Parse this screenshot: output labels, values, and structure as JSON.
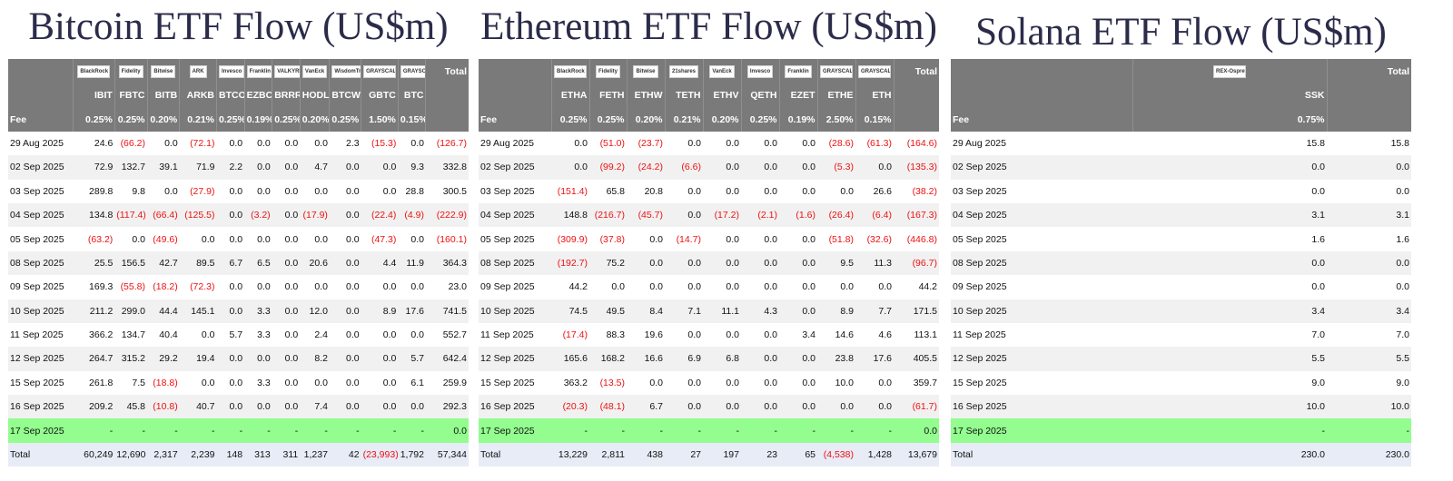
{
  "colors": {
    "header_bg": "#7a7a7a",
    "negative": "#ee1111",
    "highlight_row": "#93fd8f",
    "total_row": "#e7ecf7",
    "title": "#2b2b4a"
  },
  "panels": [
    {
      "id": "bitcoin",
      "title": "Bitcoin ETF Flow (US$m)",
      "issuer_logos": [
        "",
        "BlackRock",
        "Fidelity",
        "Bitwise",
        "ARK",
        "Invesco",
        "Franklin",
        "VALKYRIE",
        "VanEck",
        "WisdomTree",
        "GRAYSCALE",
        "GRAYSCALE",
        "Total"
      ],
      "tickers": [
        "",
        "IBIT",
        "FBTC",
        "BITB",
        "ARKB",
        "BTCO",
        "EZBC",
        "BRRR",
        "HODL",
        "BTCW",
        "GBTC",
        "BTC",
        ""
      ],
      "fees": [
        "Fee",
        "0.25%",
        "0.25%",
        "0.20%",
        "0.21%",
        "0.25%",
        "0.19%",
        "0.25%",
        "0.20%",
        "0.25%",
        "1.50%",
        "0.15%",
        ""
      ],
      "rows": [
        [
          "29 Aug 2025",
          "24.6",
          "(66.2)",
          "0.0",
          "(72.1)",
          "0.0",
          "0.0",
          "0.0",
          "0.0",
          "2.3",
          "(15.3)",
          "0.0",
          "(126.7)"
        ],
        [
          "02 Sep 2025",
          "72.9",
          "132.7",
          "39.1",
          "71.9",
          "2.2",
          "0.0",
          "0.0",
          "4.7",
          "0.0",
          "0.0",
          "9.3",
          "332.8"
        ],
        [
          "03 Sep 2025",
          "289.8",
          "9.8",
          "0.0",
          "(27.9)",
          "0.0",
          "0.0",
          "0.0",
          "0.0",
          "0.0",
          "0.0",
          "28.8",
          "300.5"
        ],
        [
          "04 Sep 2025",
          "134.8",
          "(117.4)",
          "(66.4)",
          "(125.5)",
          "0.0",
          "(3.2)",
          "0.0",
          "(17.9)",
          "0.0",
          "(22.4)",
          "(4.9)",
          "(222.9)"
        ],
        [
          "05 Sep 2025",
          "(63.2)",
          "0.0",
          "(49.6)",
          "0.0",
          "0.0",
          "0.0",
          "0.0",
          "0.0",
          "0.0",
          "(47.3)",
          "0.0",
          "(160.1)"
        ],
        [
          "08 Sep 2025",
          "25.5",
          "156.5",
          "42.7",
          "89.5",
          "6.7",
          "6.5",
          "0.0",
          "20.6",
          "0.0",
          "4.4",
          "11.9",
          "364.3"
        ],
        [
          "09 Sep 2025",
          "169.3",
          "(55.8)",
          "(18.2)",
          "(72.3)",
          "0.0",
          "0.0",
          "0.0",
          "0.0",
          "0.0",
          "0.0",
          "0.0",
          "23.0"
        ],
        [
          "10 Sep 2025",
          "211.2",
          "299.0",
          "44.4",
          "145.1",
          "0.0",
          "3.3",
          "0.0",
          "12.0",
          "0.0",
          "8.9",
          "17.6",
          "741.5"
        ],
        [
          "11 Sep 2025",
          "366.2",
          "134.7",
          "40.4",
          "0.0",
          "5.7",
          "3.3",
          "0.0",
          "2.4",
          "0.0",
          "0.0",
          "0.0",
          "552.7"
        ],
        [
          "12 Sep 2025",
          "264.7",
          "315.2",
          "29.2",
          "19.4",
          "0.0",
          "0.0",
          "0.0",
          "8.2",
          "0.0",
          "0.0",
          "5.7",
          "642.4"
        ],
        [
          "15 Sep 2025",
          "261.8",
          "7.5",
          "(18.8)",
          "0.0",
          "0.0",
          "3.3",
          "0.0",
          "0.0",
          "0.0",
          "0.0",
          "6.1",
          "259.9"
        ],
        [
          "16 Sep 2025",
          "209.2",
          "45.8",
          "(10.8)",
          "40.7",
          "0.0",
          "0.0",
          "0.0",
          "7.4",
          "0.0",
          "0.0",
          "0.0",
          "292.3"
        ],
        [
          "17 Sep 2025",
          "-",
          "-",
          "-",
          "-",
          "-",
          "-",
          "-",
          "-",
          "-",
          "-",
          "-",
          "0.0"
        ]
      ],
      "total_row": [
        "Total",
        "60,249",
        "12,690",
        "2,317",
        "2,239",
        "148",
        "313",
        "311",
        "1,237",
        "42",
        "(23,993)",
        "1,792",
        "57,344"
      ]
    },
    {
      "id": "ethereum",
      "title": "Ethereum ETF Flow (US$m)",
      "issuer_logos": [
        "",
        "BlackRock",
        "Fidelity",
        "Bitwise",
        "21shares",
        "VanEck",
        "Invesco",
        "Franklin",
        "GRAYSCALE",
        "GRAYSCALE",
        "Total"
      ],
      "tickers": [
        "",
        "ETHA",
        "FETH",
        "ETHW",
        "TETH",
        "ETHV",
        "QETH",
        "EZET",
        "ETHE",
        "ETH",
        ""
      ],
      "fees": [
        "Fee",
        "0.25%",
        "0.25%",
        "0.20%",
        "0.21%",
        "0.20%",
        "0.25%",
        "0.19%",
        "2.50%",
        "0.15%",
        ""
      ],
      "rows": [
        [
          "29 Aug 2025",
          "0.0",
          "(51.0)",
          "(23.7)",
          "0.0",
          "0.0",
          "0.0",
          "0.0",
          "(28.6)",
          "(61.3)",
          "(164.6)"
        ],
        [
          "02 Sep 2025",
          "0.0",
          "(99.2)",
          "(24.2)",
          "(6.6)",
          "0.0",
          "0.0",
          "0.0",
          "(5.3)",
          "0.0",
          "(135.3)"
        ],
        [
          "03 Sep 2025",
          "(151.4)",
          "65.8",
          "20.8",
          "0.0",
          "0.0",
          "0.0",
          "0.0",
          "0.0",
          "26.6",
          "(38.2)"
        ],
        [
          "04 Sep 2025",
          "148.8",
          "(216.7)",
          "(45.7)",
          "0.0",
          "(17.2)",
          "(2.1)",
          "(1.6)",
          "(26.4)",
          "(6.4)",
          "(167.3)"
        ],
        [
          "05 Sep 2025",
          "(309.9)",
          "(37.8)",
          "0.0",
          "(14.7)",
          "0.0",
          "0.0",
          "0.0",
          "(51.8)",
          "(32.6)",
          "(446.8)"
        ],
        [
          "08 Sep 2025",
          "(192.7)",
          "75.2",
          "0.0",
          "0.0",
          "0.0",
          "0.0",
          "0.0",
          "9.5",
          "11.3",
          "(96.7)"
        ],
        [
          "09 Sep 2025",
          "44.2",
          "0.0",
          "0.0",
          "0.0",
          "0.0",
          "0.0",
          "0.0",
          "0.0",
          "0.0",
          "44.2"
        ],
        [
          "10 Sep 2025",
          "74.5",
          "49.5",
          "8.4",
          "7.1",
          "11.1",
          "4.3",
          "0.0",
          "8.9",
          "7.7",
          "171.5"
        ],
        [
          "11 Sep 2025",
          "(17.4)",
          "88.3",
          "19.6",
          "0.0",
          "0.0",
          "0.0",
          "3.4",
          "14.6",
          "4.6",
          "113.1"
        ],
        [
          "12 Sep 2025",
          "165.6",
          "168.2",
          "16.6",
          "6.9",
          "6.8",
          "0.0",
          "0.0",
          "23.8",
          "17.6",
          "405.5"
        ],
        [
          "15 Sep 2025",
          "363.2",
          "(13.5)",
          "0.0",
          "0.0",
          "0.0",
          "0.0",
          "0.0",
          "10.0",
          "0.0",
          "359.7"
        ],
        [
          "16 Sep 2025",
          "(20.3)",
          "(48.1)",
          "6.7",
          "0.0",
          "0.0",
          "0.0",
          "0.0",
          "0.0",
          "0.0",
          "(61.7)"
        ],
        [
          "17 Sep 2025",
          "-",
          "-",
          "-",
          "-",
          "-",
          "-",
          "-",
          "-",
          "-",
          "0.0"
        ]
      ],
      "total_row": [
        "Total",
        "13,229",
        "2,811",
        "438",
        "27",
        "197",
        "23",
        "65",
        "(4,538)",
        "1,428",
        "13,679"
      ]
    },
    {
      "id": "solana",
      "title": "Solana ETF Flow (US$m)",
      "issuer_logos": [
        "",
        "REX-Osprey",
        "Total"
      ],
      "tickers": [
        "",
        "SSK",
        ""
      ],
      "fees": [
        "Fee",
        "0.75%",
        ""
      ],
      "rows": [
        [
          "29 Aug 2025",
          "15.8",
          "15.8"
        ],
        [
          "02 Sep 2025",
          "0.0",
          "0.0"
        ],
        [
          "03 Sep 2025",
          "0.0",
          "0.0"
        ],
        [
          "04 Sep 2025",
          "3.1",
          "3.1"
        ],
        [
          "05 Sep 2025",
          "1.6",
          "1.6"
        ],
        [
          "08 Sep 2025",
          "0.0",
          "0.0"
        ],
        [
          "09 Sep 2025",
          "0.0",
          "0.0"
        ],
        [
          "10 Sep 2025",
          "3.4",
          "3.4"
        ],
        [
          "11 Sep 2025",
          "7.0",
          "7.0"
        ],
        [
          "12 Sep 2025",
          "5.5",
          "5.5"
        ],
        [
          "15 Sep 2025",
          "9.0",
          "9.0"
        ],
        [
          "16 Sep 2025",
          "10.0",
          "10.0"
        ],
        [
          "17 Sep 2025",
          "-",
          "-"
        ]
      ],
      "total_row": [
        "Total",
        "230.0",
        "230.0"
      ]
    }
  ]
}
